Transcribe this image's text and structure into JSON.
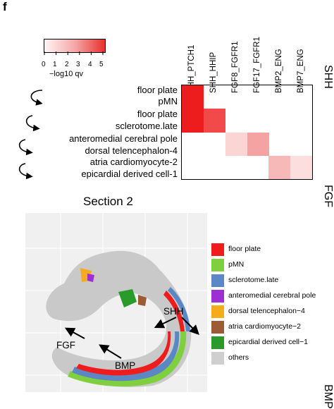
{
  "panel_letter": "f",
  "colorbar": {
    "ticks": [
      "0",
      "1",
      "2",
      "3",
      "4",
      "5"
    ],
    "label": "−log10 qv",
    "colors": [
      "#fff5f5",
      "#f4a8a8",
      "#e8302f"
    ]
  },
  "heatmap": {
    "columns": [
      "SHH_PTCH1",
      "SHH_HHIP",
      "FGF8_FGFR1",
      "FGF17_FGFR1",
      "BMP2_ENG",
      "BMP7_ENG"
    ],
    "rows": [
      "floor plate",
      "pMN",
      "floor plate",
      "sclerotome.late",
      "anteromedial cerebral pole",
      "dorsal telencephalon-4",
      "atria cardiomyocyte-2",
      "epicardial derived cell-1"
    ],
    "cells": [
      {
        "row": 0,
        "col": 0,
        "color": "#ee1d1d"
      },
      {
        "row": 1,
        "col": 0,
        "color": "#ee1d1d"
      },
      {
        "row": 2,
        "col": 0,
        "color": "#ee1d1d"
      },
      {
        "row": 3,
        "col": 0,
        "color": "#ee1d1d"
      },
      {
        "row": 2,
        "col": 1,
        "color": "#f24a4a"
      },
      {
        "row": 3,
        "col": 1,
        "color": "#f24a4a"
      },
      {
        "row": 4,
        "col": 2,
        "color": "#fbd4d4"
      },
      {
        "row": 5,
        "col": 2,
        "color": "#fbd4d4"
      },
      {
        "row": 4,
        "col": 3,
        "color": "#f4a2a2"
      },
      {
        "row": 5,
        "col": 3,
        "color": "#f4a2a2"
      },
      {
        "row": 6,
        "col": 4,
        "color": "#f7b8b8"
      },
      {
        "row": 7,
        "col": 4,
        "color": "#f7b8b8"
      },
      {
        "row": 6,
        "col": 5,
        "color": "#fcdede"
      },
      {
        "row": 7,
        "col": 5,
        "color": "#fcdede"
      }
    ],
    "side_labels": [
      "SHH",
      "FGF",
      "BMP"
    ]
  },
  "section": {
    "title": "Section 2",
    "annotations": {
      "shh": "SHH",
      "fgf": "FGF",
      "bmp": "BMP"
    }
  },
  "legend": [
    {
      "label": "floor plate",
      "color": "#ee1c1c"
    },
    {
      "label": "pMN",
      "color": "#7fcf3f"
    },
    {
      "label": "sclerotome.late",
      "color": "#5b87c5"
    },
    {
      "label": "anteromedial cerebral pole",
      "color": "#9d2fd3"
    },
    {
      "label": "dorsal telencephalon−4",
      "color": "#f5ac1c"
    },
    {
      "label": "atria cardiomyocyte−2",
      "color": "#9c5a36"
    },
    {
      "label": "epicardial derived cell−1",
      "color": "#2a9a2a"
    },
    {
      "label": "others",
      "color": "#cfcfcf"
    }
  ]
}
